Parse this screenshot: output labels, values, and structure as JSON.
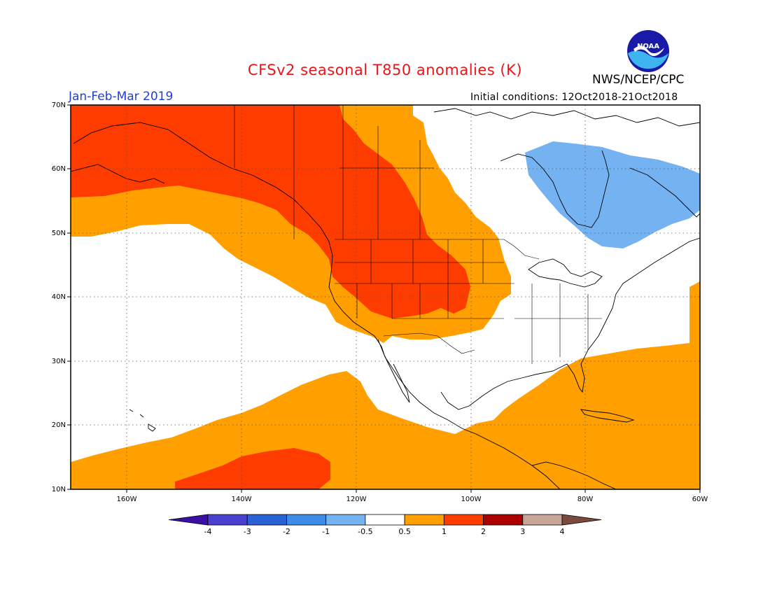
{
  "title": "CFSv2 seasonal T850 anomalies (K)",
  "agency": "NWS/NCEP/CPC",
  "period": "Jan-Feb-Mar 2019",
  "initial_conditions": "Initial conditions: 12Oct2018-21Oct2018",
  "logo_text": "NOAA",
  "lat_labels": [
    "70N",
    "60N",
    "50N",
    "40N",
    "30N",
    "20N",
    "10N"
  ],
  "lon_labels": [
    "160W",
    "140W",
    "120W",
    "100W",
    "80W",
    "60W"
  ],
  "colorbar": {
    "labels": [
      "-4",
      "-3",
      "-2",
      "-1",
      "-0.5",
      "0.5",
      "1",
      "2",
      "3",
      "4"
    ],
    "colors": [
      "#3a0fa3",
      "#4b3fd0",
      "#2a62d6",
      "#3f8be8",
      "#74b2f2",
      "#ffffff",
      "#ffa000",
      "#ff3c00",
      "#aa0000",
      "#c9a596",
      "#7a4a3c"
    ]
  },
  "legend_colors": {
    "negative_light": "#74b2f2",
    "positive_light": "#ffa000",
    "positive_medium": "#ff3c00"
  }
}
